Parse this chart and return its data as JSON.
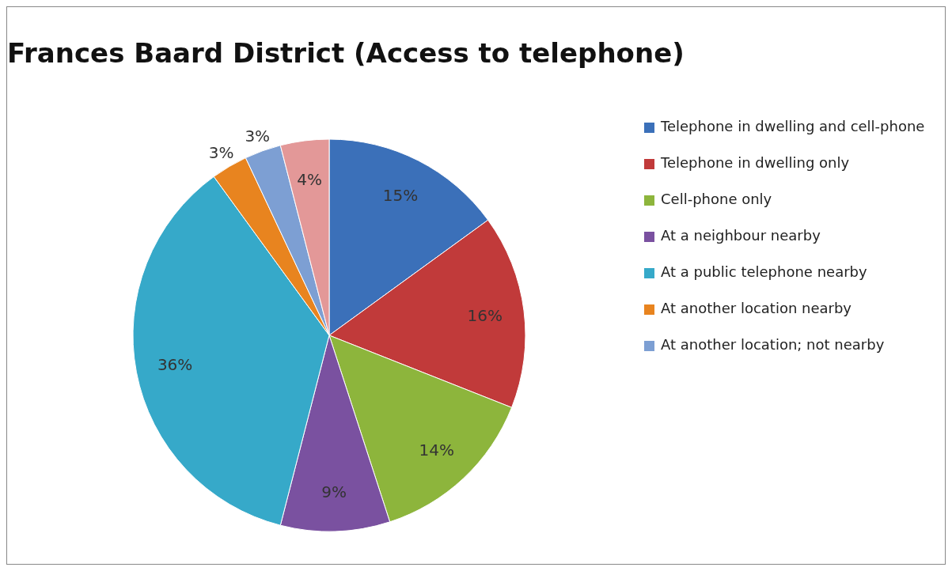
{
  "chart_data": {
    "type": "pie",
    "title": "Frances Baard District (Access to telephone)",
    "categories": [
      "Telephone in dwelling and cell-phone",
      "Telephone in dwelling only",
      "Cell-phone only",
      "At a neighbour nearby",
      "At a public telephone nearby",
      "At another location nearby",
      "At another location; not nearby",
      null
    ],
    "values": [
      15,
      16,
      14,
      9,
      36,
      3,
      3,
      4
    ],
    "colors": [
      "#3b70b9",
      "#c13a3a",
      "#8db53c",
      "#7a51a0",
      "#36a9c9",
      "#e8841f",
      "#7d9fd3",
      "#e39898"
    ],
    "value_labels": [
      "15%",
      "16%",
      "14%",
      "9%",
      "36%",
      "3%",
      "3%",
      "4%"
    ],
    "legend": "right"
  }
}
